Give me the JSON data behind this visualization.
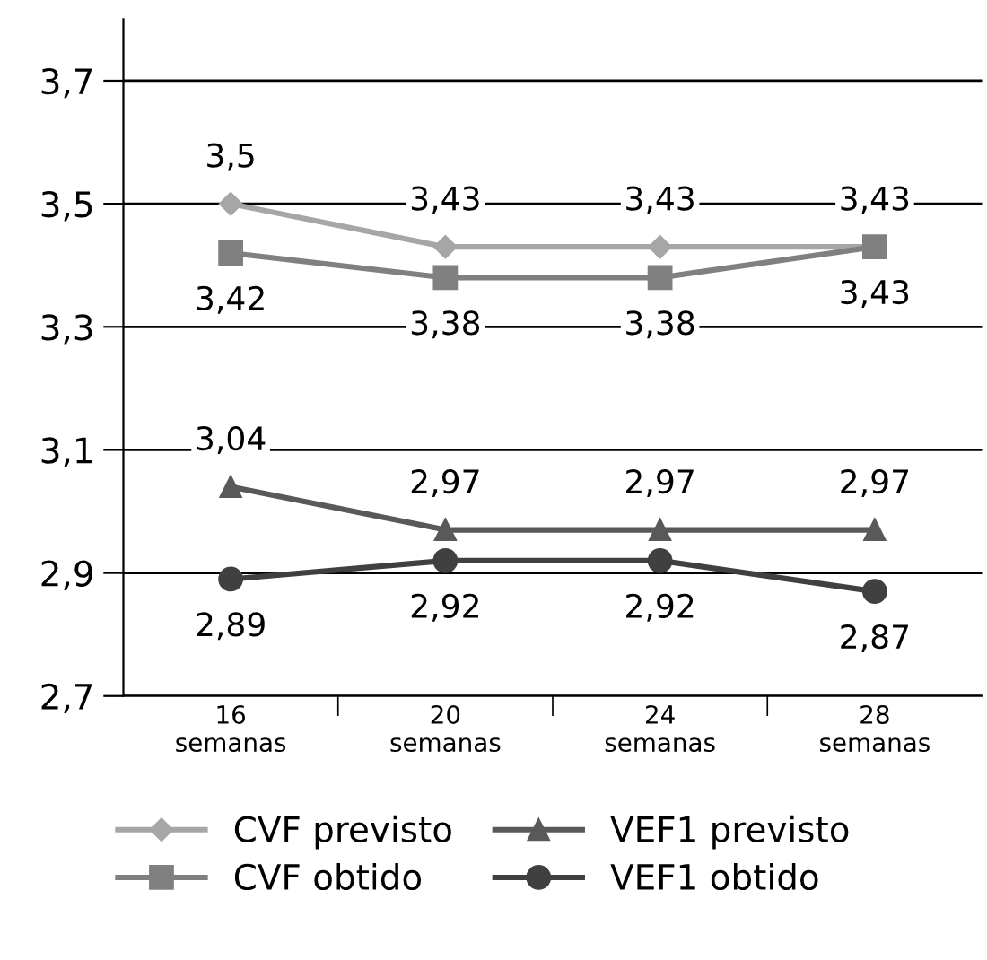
{
  "chart_data": {
    "type": "line",
    "categories": [
      "16\nsemanas",
      "20\nsemanas",
      "24\nsemanas",
      "28\nsemanas"
    ],
    "series": [
      {
        "name": "CVF previsto",
        "color": "#a6a6a6",
        "marker": "diamond",
        "values": [
          3.5,
          3.43,
          3.43,
          3.43
        ],
        "value_labels": [
          "3,5",
          "3,43",
          "3,43",
          "3,43"
        ]
      },
      {
        "name": "CVF obtido",
        "color": "#808080",
        "marker": "square",
        "values": [
          3.42,
          3.38,
          3.38,
          3.43
        ],
        "value_labels": [
          "3,42",
          "3,38",
          "3,38",
          "3,43"
        ]
      },
      {
        "name": "VEF1 previsto",
        "color": "#595959",
        "marker": "triangle",
        "values": [
          3.04,
          2.97,
          2.97,
          2.97
        ],
        "value_labels": [
          "3,04",
          "2,97",
          "2,97",
          "2,97"
        ]
      },
      {
        "name": "VEF1 obtido",
        "color": "#404040",
        "marker": "circle",
        "values": [
          2.89,
          2.92,
          2.92,
          2.87
        ],
        "value_labels": [
          "2,89",
          "2,92",
          "2,92",
          "2,87"
        ]
      }
    ],
    "ylim": [
      2.7,
      3.8
    ],
    "yticks": [
      {
        "value": 2.7,
        "label": "2,7"
      },
      {
        "value": 2.9,
        "label": "2,9"
      },
      {
        "value": 3.1,
        "label": "3,1"
      },
      {
        "value": 3.3,
        "label": "3,3"
      },
      {
        "value": 3.5,
        "label": "3,5"
      },
      {
        "value": 3.7,
        "label": "3,7"
      }
    ],
    "grid": "y",
    "legend": "bottom",
    "line_style": "solid"
  }
}
